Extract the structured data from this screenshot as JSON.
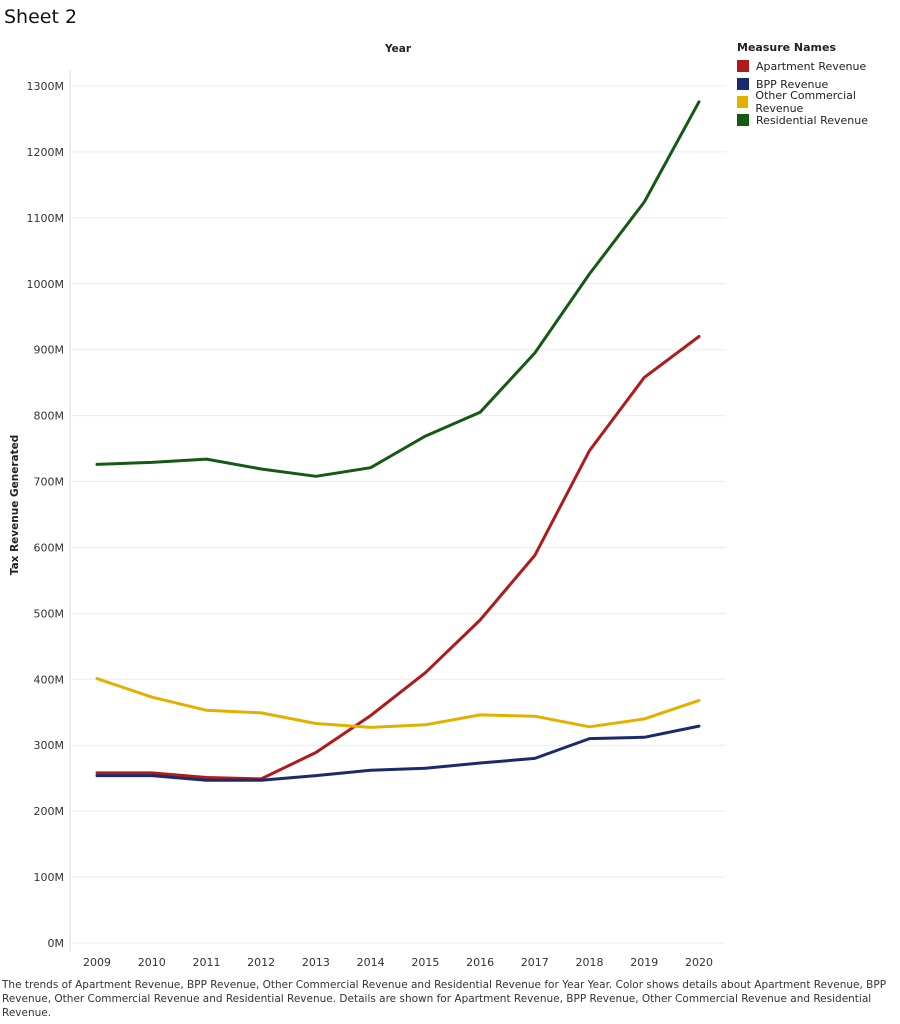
{
  "sheet": {
    "title": "Sheet 2"
  },
  "legend": {
    "title": "Measure Names",
    "items": [
      {
        "label": "Apartment Revenue",
        "color": "#b11a1a"
      },
      {
        "label": "BPP Revenue",
        "color": "#1b2a6b"
      },
      {
        "label": "Other Commercial Revenue",
        "color": "#e2b100"
      },
      {
        "label": "Residential Revenue",
        "color": "#145a14"
      }
    ]
  },
  "caption": "The trends of Apartment Revenue, BPP Revenue, Other Commercial Revenue and Residential Revenue for Year Year.  Color shows details about Apartment Revenue, BPP Revenue, Other Commercial Revenue and Residential Revenue.  Details are shown for Apartment Revenue, BPP Revenue, Other Commercial Revenue and Residential Revenue.",
  "chart_data": {
    "type": "line",
    "title": "Year",
    "xlabel": "Year",
    "ylabel": "Tax Revenue Generated",
    "ylim": [
      0,
      1300
    ],
    "yticks": [
      0,
      100,
      200,
      300,
      400,
      500,
      600,
      700,
      800,
      900,
      1000,
      1100,
      1200,
      1300
    ],
    "ytick_labels": [
      "0M",
      "100M",
      "200M",
      "300M",
      "400M",
      "500M",
      "600M",
      "700M",
      "800M",
      "900M",
      "1000M",
      "1100M",
      "1200M",
      "1300M"
    ],
    "categories": [
      "2009",
      "2010",
      "2011",
      "2012",
      "2013",
      "2014",
      "2015",
      "2016",
      "2017",
      "2018",
      "2019",
      "2020"
    ],
    "grid": true,
    "legend_position": "top-right",
    "series": [
      {
        "name": "Apartment Revenue",
        "color": "#b11a1a",
        "values": [
          258,
          258,
          251,
          249,
          289,
          345,
          410,
          490,
          588,
          747,
          858,
          920
        ]
      },
      {
        "name": "BPP Revenue",
        "color": "#1b2a6b",
        "values": [
          254,
          254,
          247,
          247,
          254,
          262,
          265,
          273,
          280,
          310,
          312,
          329
        ]
      },
      {
        "name": "Other Commercial Revenue",
        "color": "#e2b100",
        "values": [
          401,
          373,
          353,
          349,
          333,
          327,
          331,
          346,
          344,
          328,
          340,
          368
        ]
      },
      {
        "name": "Residential Revenue",
        "color": "#145a14",
        "values": [
          726,
          729,
          734,
          719,
          708,
          721,
          769,
          805,
          895,
          1015,
          1124,
          1276
        ]
      }
    ]
  }
}
